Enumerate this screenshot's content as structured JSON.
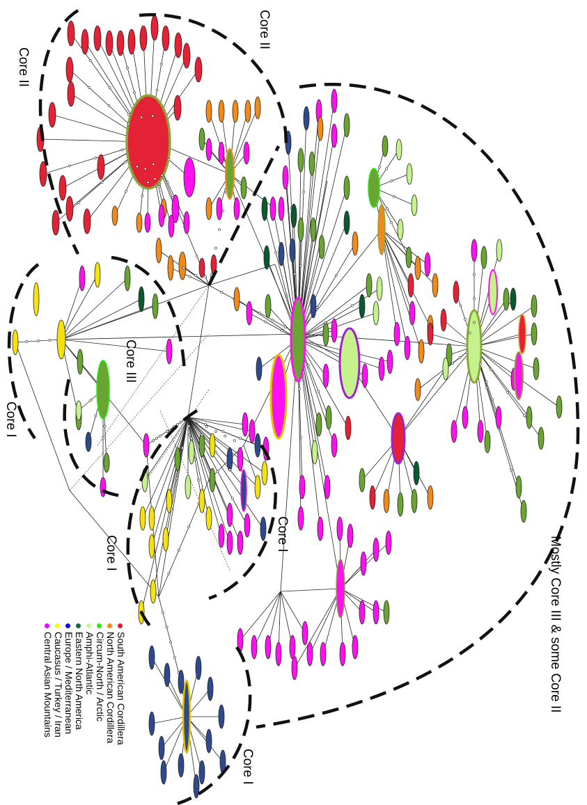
{
  "labels": {
    "core_ii_top": "Core II",
    "core_ii_left": "Core II",
    "core_iii": "Core III",
    "core_i_left": "Core I",
    "core_i_mid": "Core I",
    "core_i_center": "Core I",
    "core_i_bottom": "Core I",
    "mostly": "Mostly Core III & some Core II"
  },
  "legend": [
    {
      "label": "South American Cordillera",
      "color": "#e31b2f"
    },
    {
      "label": "North American Cordillera",
      "color": "#f28a1a"
    },
    {
      "label": "Circum-North / Arctic",
      "color": "#22ee11"
    },
    {
      "label": "Amphi-Atlantic",
      "color": "#c8f5a0"
    },
    {
      "label": "Eastern North America",
      "color": "#0b6b3a"
    },
    {
      "label": "Europe / Mediterranean",
      "color": "#1010dd"
    },
    {
      "label": "Caucasus / Turkey / Iran",
      "color": "#ffff00"
    },
    {
      "label": "Central Asian Mountains",
      "color": "#ff00ff"
    }
  ],
  "node_colors": {
    "red": "#e32236",
    "orange": "#f28a1a",
    "green": "#6aa534",
    "lightgreen": "#c6f28e",
    "darkgreen": "#0b5a2e",
    "blue": "#2e4a8c",
    "yellow": "#f6e20a",
    "magenta": "#ff10f0"
  }
}
